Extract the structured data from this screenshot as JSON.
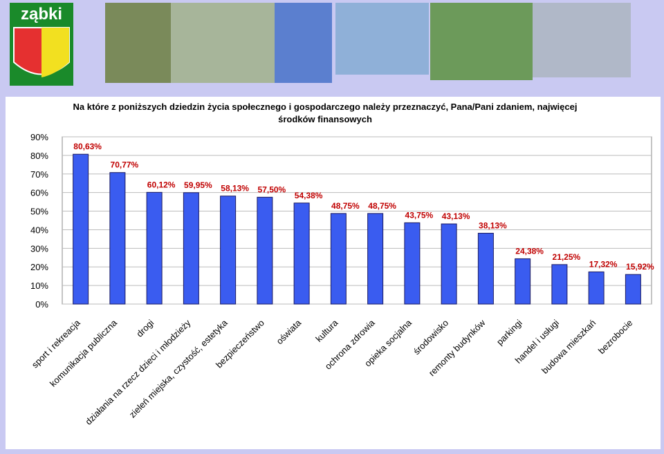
{
  "banner": {
    "logo_text": "ząbki"
  },
  "chart_data": {
    "type": "bar",
    "title": "Na które z poniższych dziedzin życia społecznego i gospodarczego należy przeznaczyć, Pana/Pani zdaniem, najwięcej środków finansowych",
    "categories": [
      "sport i rekreacja",
      "komunikacja publiczna",
      "drogi",
      "działania na rzecz dzieci i młodzieży",
      "zieleń miejska, czystość, estetyka",
      "bezpieczeństwo",
      "oświata",
      "kultura",
      "ochrona zdrowia",
      "opieka socjalna",
      "środowisko",
      "remonty budynków",
      "parkingi",
      "handel i usługi",
      "budowa mieszkań",
      "bezrobocie"
    ],
    "values": [
      80.63,
      70.77,
      60.12,
      59.95,
      58.13,
      57.5,
      54.38,
      48.75,
      48.75,
      43.75,
      43.13,
      38.13,
      24.38,
      21.25,
      17.32,
      15.92
    ],
    "value_labels": [
      "80,63%",
      "70,77%",
      "60,12%",
      "59,95%",
      "58,13%",
      "57,50%",
      "54,38%",
      "48,75%",
      "48,75%",
      "43,75%",
      "43,13%",
      "38,13%",
      "24,38%",
      "21,25%",
      "17,32%",
      "15,92%"
    ],
    "color": "#3a5cf0",
    "label_color": "#c00000",
    "ylim": [
      0,
      90
    ],
    "yticks": [
      {
        "value": 0,
        "label": "0%"
      },
      {
        "value": 10,
        "label": "10%"
      },
      {
        "value": 20,
        "label": "20%"
      },
      {
        "value": 30,
        "label": "30%"
      },
      {
        "value": 40,
        "label": "40%"
      },
      {
        "value": 50,
        "label": "50%"
      },
      {
        "value": 60,
        "label": "60%"
      },
      {
        "value": 70,
        "label": "70%"
      },
      {
        "value": 80,
        "label": "80%"
      },
      {
        "value": 90,
        "label": "90%"
      }
    ],
    "grid": true
  }
}
